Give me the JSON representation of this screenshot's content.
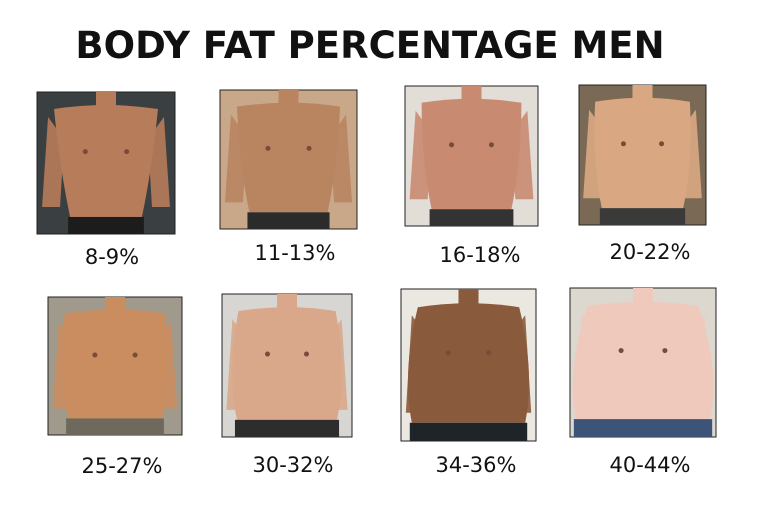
{
  "header": {
    "title": "BODY FAT PERCENTAGE MEN"
  },
  "items": [
    {
      "label": "8-9%"
    },
    {
      "label": "11-13%"
    },
    {
      "label": "16-18%"
    },
    {
      "label": "20-22%"
    },
    {
      "label": "25-27%"
    },
    {
      "label": "30-32%"
    },
    {
      "label": "34-36%"
    },
    {
      "label": "40-44%"
    }
  ]
}
